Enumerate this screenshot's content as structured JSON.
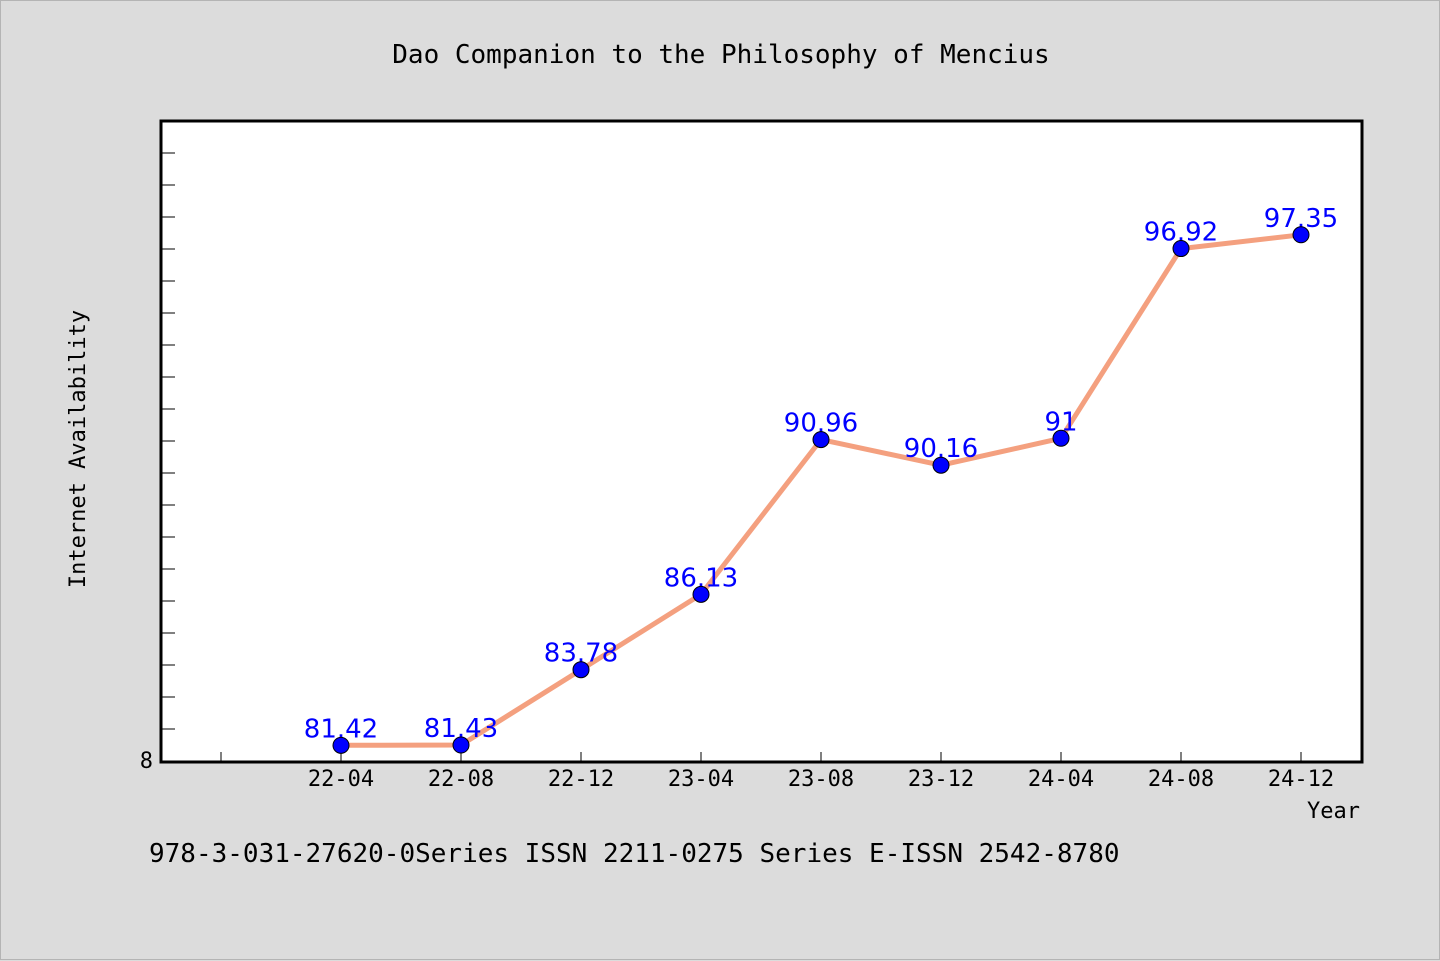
{
  "chart_data": {
    "type": "line",
    "title": "Dao Companion to the Philosophy of Mencius",
    "xlabel": "Year",
    "ylabel": "Internet Availability",
    "categories": [
      "22-04",
      "22-08",
      "22-12",
      "23-04",
      "23-08",
      "23-12",
      "24-04",
      "24-08",
      "24-12"
    ],
    "values": [
      81.42,
      81.43,
      83.78,
      86.13,
      90.96,
      90.16,
      91,
      96.92,
      97.35
    ],
    "data_labels": [
      "81.42",
      "81.43",
      "83.78",
      "86.13",
      "90.96",
      "90.16",
      "91",
      "96.92",
      "97.35"
    ],
    "y_tick_label": "8",
    "ylim": [
      80.9,
      100.9
    ],
    "grid": false,
    "legend": "none",
    "line_color": "#f4a07f",
    "marker_color": "#0000ff",
    "label_color": "#0000ff"
  },
  "footer": {
    "text": "978-3-031-27620-0Series ISSN 2211-0275 Series E-ISSN 2542-8780"
  }
}
